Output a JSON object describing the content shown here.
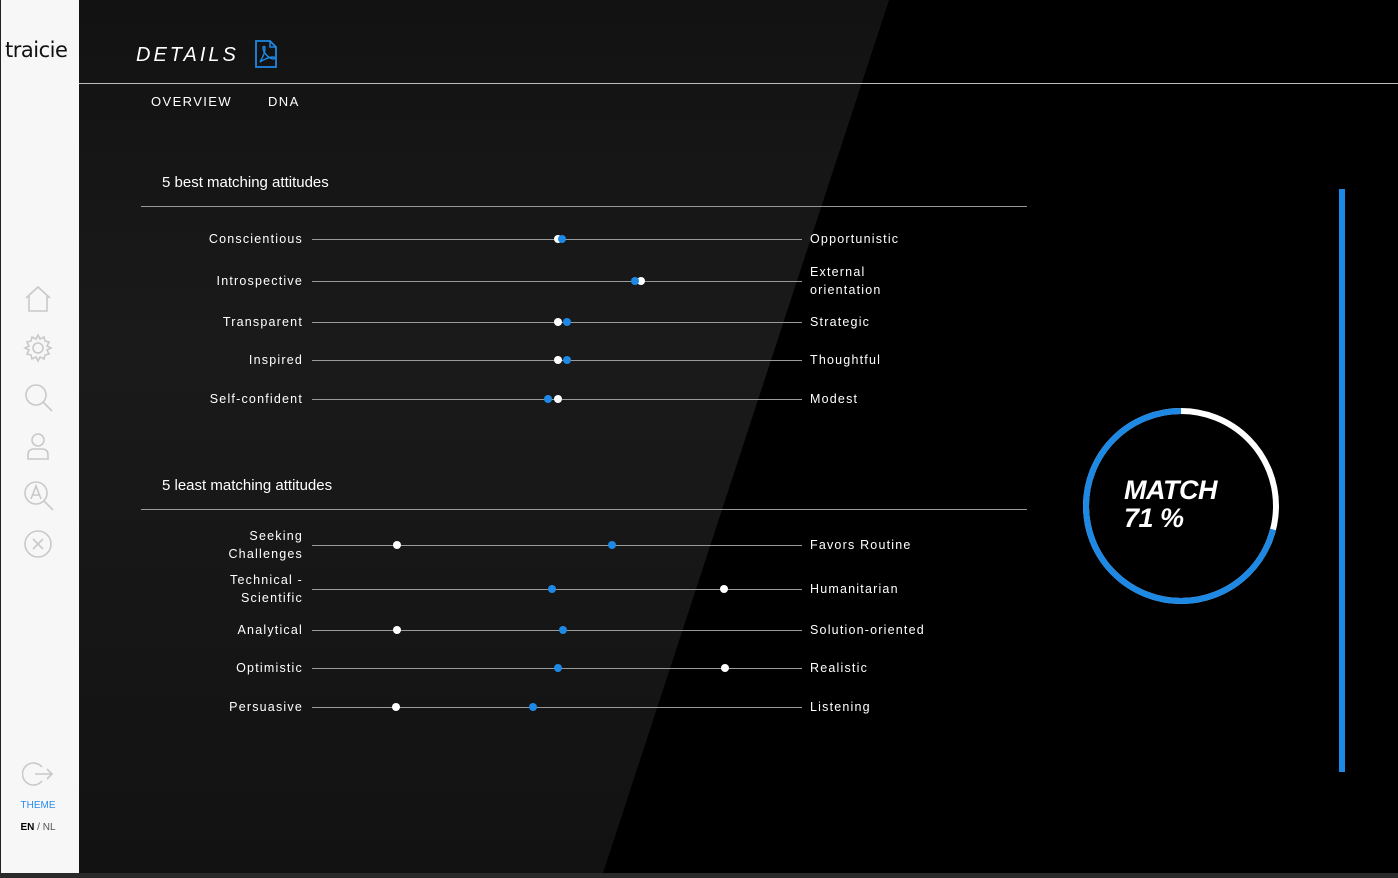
{
  "app": {
    "logo": "traicie"
  },
  "sidebar": {
    "items": [
      {
        "icon": "home-icon"
      },
      {
        "icon": "gear-icon"
      },
      {
        "icon": "search-icon"
      },
      {
        "icon": "user-icon"
      },
      {
        "icon": "search-a-icon"
      },
      {
        "icon": "close-circle-icon"
      }
    ],
    "logout_icon": "logout-icon",
    "theme_label": "THEME",
    "lang_en": "EN",
    "lang_sep": "/",
    "lang_nl": "NL"
  },
  "header": {
    "title": "DETAILS",
    "pdf_icon": "pdf-icon"
  },
  "tabs": [
    {
      "label": "OVERVIEW",
      "active": true
    },
    {
      "label": "DNA",
      "active": false
    }
  ],
  "colors": {
    "accent": "#1e88e5",
    "background": "#000000",
    "sidebar": "#f7f7f7"
  },
  "best": {
    "title": "5 best matching attitudes",
    "rows": [
      {
        "left": "Conscientious",
        "right": "Opportunistic",
        "white": 0.503,
        "blue": 0.51
      },
      {
        "left": "Introspective",
        "right": "External\norientation",
        "white": 0.671,
        "blue": 0.66
      },
      {
        "left": "Transparent",
        "right": "Strategic",
        "white": 0.503,
        "blue": 0.52
      },
      {
        "left": "Inspired",
        "right": "Thoughtful",
        "white": 0.503,
        "blue": 0.52
      },
      {
        "left": "Self-confident",
        "right": "Modest",
        "white": 0.503,
        "blue": 0.482
      }
    ]
  },
  "least": {
    "title": "5 least matching attitudes",
    "rows": [
      {
        "left": "Seeking\nChallenges",
        "right": "Favors Routine",
        "white": 0.173,
        "blue": 0.612
      },
      {
        "left": "Technical -\nScientific",
        "right": "Humanitarian",
        "white": 0.84,
        "blue": 0.49
      },
      {
        "left": "Analytical",
        "right": "Solution-oriented",
        "white": 0.173,
        "blue": 0.512
      },
      {
        "left": "Optimistic",
        "right": "Realistic",
        "white": 0.843,
        "blue": 0.502
      },
      {
        "left": "Persuasive",
        "right": "Listening",
        "white": 0.171,
        "blue": 0.451
      }
    ]
  },
  "match": {
    "label": "MATCH",
    "value_text": "71 %",
    "percent": 71
  }
}
